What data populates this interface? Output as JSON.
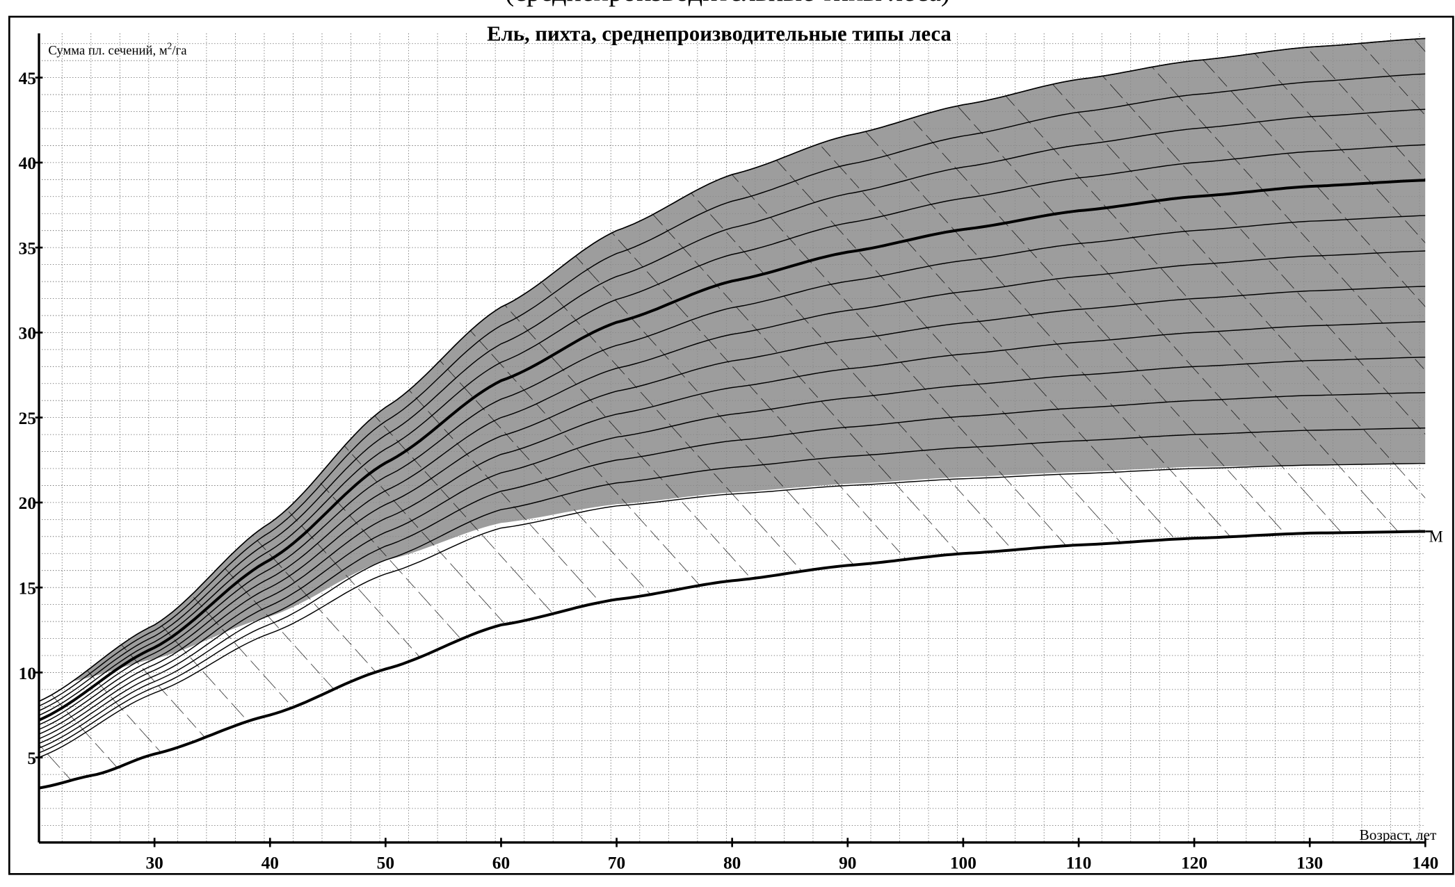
{
  "header_cut_text": "(среднепроизводительные типы леса)",
  "chart_data": {
    "type": "line",
    "title": "Ель, пихта, среднепроизводительные типы леса",
    "ylabel": "Сумма пл. сечений, м²/га",
    "ylabel_main": "Сумма пл. сечений, м",
    "ylabel_sup": "2",
    "ylabel_tail": "/га",
    "xlabel": "Возраст, лет",
    "xlim": [
      20,
      140
    ],
    "ylim": [
      0,
      47.6
    ],
    "x_ticks": [
      "30",
      "40",
      "50",
      "60",
      "70",
      "80",
      "90",
      "100",
      "110",
      "120",
      "130",
      "140"
    ],
    "y_ticks": [
      "5",
      "10",
      "15",
      "20",
      "25",
      "30",
      "35",
      "40",
      "45"
    ],
    "grid": true,
    "colors": {
      "band": "#8c8c8c",
      "line": "#000000",
      "grid": "#555555"
    },
    "upper_envelope": {
      "x": [
        20,
        30,
        40,
        50,
        60,
        70,
        80,
        90,
        100,
        110,
        120,
        130,
        140
      ],
      "y": [
        8.3,
        12.8,
        18.8,
        25.6,
        31.5,
        36,
        39.3,
        41.6,
        43.4,
        44.9,
        46,
        46.8,
        47.3
      ]
    },
    "band_lower": {
      "x": [
        23,
        30,
        40,
        50,
        60,
        70,
        80,
        90,
        100,
        110,
        120,
        130,
        140
      ],
      "y": [
        9.5,
        10.8,
        13.3,
        16.6,
        18.8,
        19.9,
        20.6,
        21.1,
        21.5,
        21.8,
        22.1,
        22.2,
        22.3
      ]
    },
    "thin_lower": {
      "x": [
        20,
        30,
        40,
        50,
        60,
        70,
        80,
        90,
        100,
        110,
        120,
        130,
        140
      ],
      "y": [
        5,
        8.8,
        12.3,
        15.8,
        18.5,
        19.8,
        20.5,
        21,
        21.4,
        21.7,
        22,
        22.2,
        22.3
      ]
    },
    "curve_count": 12,
    "bold_curve_index": 8,
    "series": [
      {
        "name": "М",
        "x": [
          20,
          25,
          30,
          40,
          50,
          60,
          70,
          80,
          90,
          100,
          110,
          120,
          130,
          140
        ],
        "y": [
          3.2,
          4,
          5.2,
          7.5,
          10.2,
          12.8,
          14.3,
          15.4,
          16.3,
          17,
          17.5,
          17.9,
          18.2,
          18.3
        ]
      }
    ]
  }
}
